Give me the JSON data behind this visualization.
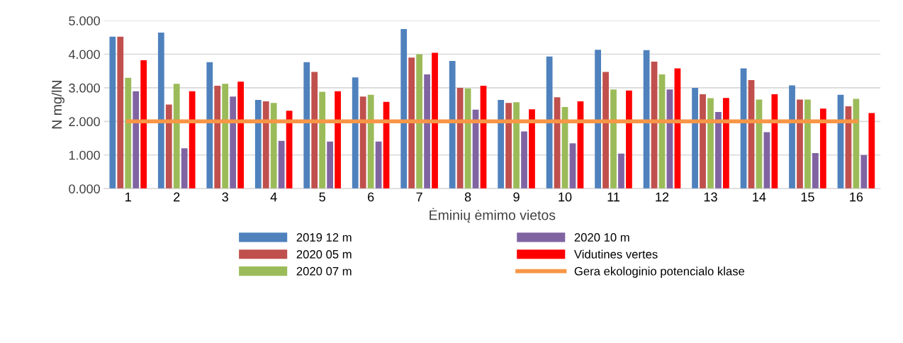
{
  "chart_data": {
    "type": "bar",
    "xlabel": "Ėminių ėmimo vietos",
    "ylabel": "N mg/lN",
    "categories": [
      "1",
      "2",
      "3",
      "4",
      "5",
      "6",
      "7",
      "8",
      "9",
      "10",
      "11",
      "12",
      "13",
      "14",
      "15",
      "16"
    ],
    "series": [
      {
        "name": "2019 12 m",
        "color": "#4f81bd",
        "values": [
          4.52,
          4.64,
          3.76,
          2.64,
          3.76,
          3.31,
          4.75,
          3.8,
          2.64,
          3.93,
          4.13,
          4.12,
          3.0,
          3.58,
          3.07,
          2.79
        ]
      },
      {
        "name": "2020 05 m",
        "color": "#c0504d",
        "values": [
          4.52,
          2.5,
          3.06,
          2.6,
          3.47,
          2.74,
          3.9,
          3.0,
          2.55,
          2.72,
          3.47,
          3.78,
          2.81,
          3.23,
          2.65,
          2.45
        ]
      },
      {
        "name": "2020 07 m",
        "color": "#9bbb59",
        "values": [
          3.3,
          3.12,
          3.12,
          2.55,
          2.88,
          2.79,
          4.0,
          2.98,
          2.57,
          2.43,
          2.95,
          3.4,
          2.69,
          2.65,
          2.65,
          2.67
        ]
      },
      {
        "name": "2020 10 m",
        "color": "#8064a2",
        "values": [
          2.9,
          1.2,
          2.74,
          1.42,
          1.4,
          1.4,
          3.4,
          2.35,
          1.7,
          1.35,
          1.04,
          2.95,
          2.28,
          1.68,
          1.06,
          1.0
        ]
      },
      {
        "name": "Vidutines vertes",
        "color": "#ff0000",
        "values": [
          3.82,
          2.9,
          3.18,
          2.32,
          2.9,
          2.58,
          4.04,
          3.06,
          2.36,
          2.6,
          2.92,
          3.58,
          2.7,
          2.81,
          2.38,
          2.25
        ]
      },
      {
        "name": "Gera ekologinio potencialo klase",
        "type": "line",
        "color": "#f79646",
        "values": [
          2.0,
          2.0,
          2.0,
          2.0,
          2.0,
          2.0,
          2.0,
          2.0,
          2.0,
          2.0,
          2.0,
          2.0,
          2.0,
          2.0,
          2.0,
          2.0
        ]
      }
    ],
    "ylim": [
      0,
      5
    ],
    "yticks": [
      {
        "value": 0,
        "label": "0.000"
      },
      {
        "value": 1,
        "label": "1.000"
      },
      {
        "value": 2,
        "label": "2.000"
      },
      {
        "value": 3,
        "label": "3.000"
      },
      {
        "value": 4,
        "label": "4.000"
      },
      {
        "value": 5,
        "label": "5.000"
      }
    ],
    "grid": "y",
    "legend": "bottom"
  }
}
